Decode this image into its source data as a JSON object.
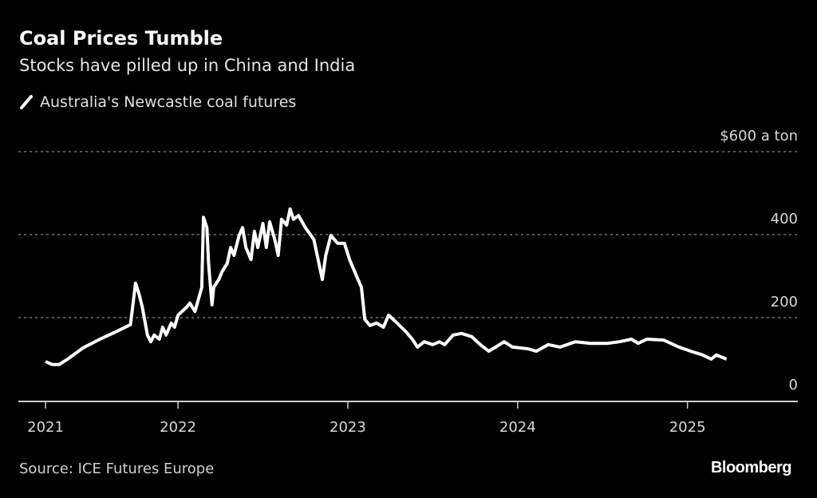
{
  "chart_data": {
    "type": "line",
    "title": "Coal Prices Tumble",
    "subtitle": "Stocks have pilled up in China and India",
    "legend": [
      {
        "label": "Australia's Newcastle coal futures",
        "color": "#ffffff"
      }
    ],
    "y_unit_label": "$600 a ton",
    "ylim": [
      0,
      600
    ],
    "y_ticks": [
      {
        "value": 0,
        "label": "0"
      },
      {
        "value": 200,
        "label": "200"
      },
      {
        "value": 400,
        "label": "400"
      },
      {
        "value": 600,
        "label": "$600 a ton"
      }
    ],
    "xlim": [
      2021.06,
      2025.65
    ],
    "x_ticks": [
      {
        "value": 2021.22,
        "label": "2021"
      },
      {
        "value": 2022.0,
        "label": "2022"
      },
      {
        "value": 2023.0,
        "label": "2023"
      },
      {
        "value": 2024.0,
        "label": "2024"
      },
      {
        "value": 2025.0,
        "label": "2025"
      }
    ],
    "grid": "horizontal dotted",
    "series": [
      {
        "name": "Australia's Newcastle coal futures",
        "x": [
          2021.22,
          2021.26,
          2021.3,
          2021.35,
          2021.4,
          2021.44,
          2021.54,
          2021.63,
          2021.72,
          2021.75,
          2021.77,
          2021.79,
          2021.82,
          2021.84,
          2021.86,
          2021.89,
          2021.91,
          2021.93,
          2021.96,
          2021.98,
          2022.0,
          2022.05,
          2022.07,
          2022.1,
          2022.14,
          2022.15,
          2022.17,
          2022.18,
          2022.2,
          2022.21,
          2022.24,
          2022.26,
          2022.29,
          2022.31,
          2022.33,
          2022.36,
          2022.38,
          2022.4,
          2022.43,
          2022.45,
          2022.47,
          2022.5,
          2022.52,
          2022.54,
          2022.57,
          2022.59,
          2022.61,
          2022.64,
          2022.66,
          2022.68,
          2022.71,
          2022.75,
          2022.8,
          2022.85,
          2022.87,
          2022.9,
          2022.94,
          2022.98,
          2023.01,
          2023.06,
          2023.08,
          2023.1,
          2023.13,
          2023.17,
          2023.21,
          2023.24,
          2023.29,
          2023.34,
          2023.38,
          2023.41,
          2023.45,
          2023.5,
          2023.54,
          2023.57,
          2023.62,
          2023.67,
          2023.73,
          2023.78,
          2023.83,
          2023.87,
          2023.92,
          2023.97,
          2024.06,
          2024.11,
          2024.18,
          2024.25,
          2024.34,
          2024.43,
          2024.53,
          2024.6,
          2024.67,
          2024.71,
          2024.76,
          2024.86,
          2024.95,
          2025.02,
          2025.09,
          2025.14,
          2025.17,
          2025.23
        ],
        "values": [
          94,
          87,
          87,
          100,
          115,
          127,
          148,
          165,
          183,
          283,
          258,
          225,
          158,
          142,
          158,
          148,
          177,
          158,
          187,
          177,
          206,
          225,
          235,
          215,
          273,
          442,
          417,
          331,
          231,
          273,
          292,
          311,
          331,
          369,
          350,
          398,
          417,
          369,
          340,
          408,
          369,
          427,
          369,
          431,
          388,
          350,
          437,
          423,
          462,
          437,
          446,
          417,
          388,
          292,
          350,
          398,
          379,
          379,
          340,
          292,
          273,
          196,
          181,
          187,
          177,
          206,
          187,
          167,
          148,
          129,
          142,
          135,
          142,
          135,
          158,
          162,
          154,
          135,
          119,
          129,
          142,
          129,
          125,
          119,
          135,
          129,
          142,
          138,
          138,
          142,
          148,
          138,
          148,
          146,
          129,
          119,
          110,
          100,
          110,
          100
        ]
      }
    ]
  },
  "source": "Source: ICE Futures Europe",
  "logo": "Bloomberg"
}
